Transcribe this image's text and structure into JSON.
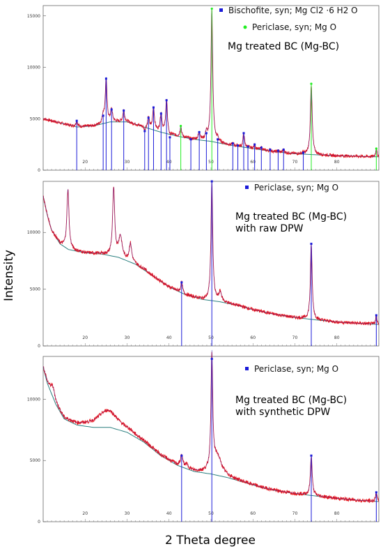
{
  "figure": {
    "ylabel": "Intensity",
    "xlabel": "2 Theta degree"
  },
  "colors": {
    "observed": "#e8141c",
    "background": "#2a7f7f",
    "fit": "#2222bb",
    "bischofite": "#1a1ad8",
    "periclase_top": "#22ee22",
    "periclase": "#1a1ad8",
    "frame": "#666666"
  },
  "chart_data": [
    {
      "type": "line",
      "title": "Mg treated BC (Mg-BC)",
      "xlim": [
        10,
        90
      ],
      "ylim": [
        0,
        16000
      ],
      "yticks": [
        0,
        5000,
        10000,
        15000
      ],
      "ytick_labels": [
        "0",
        "5000",
        "10000",
        "15000"
      ],
      "xticks": [
        20,
        30,
        40,
        50,
        60,
        70,
        80
      ],
      "xtick_labels": [
        "20",
        "30",
        "40",
        "50",
        "60",
        "70",
        "80"
      ],
      "legend": [
        {
          "label": "Bischofite, syn; Mg Cl2 ·6 H2 O",
          "marker": "square",
          "color": "#1a1ad8"
        },
        {
          "label": "Periclase, syn; Mg O",
          "marker": "circle",
          "color": "#22ee22"
        }
      ],
      "background_curve": [
        [
          10,
          5000
        ],
        [
          14,
          4600
        ],
        [
          18,
          4200
        ],
        [
          22,
          4300
        ],
        [
          26,
          4700
        ],
        [
          30,
          4700
        ],
        [
          34,
          4200
        ],
        [
          38,
          3700
        ],
        [
          42,
          3300
        ],
        [
          46,
          3000
        ],
        [
          50,
          2800
        ],
        [
          55,
          2400
        ],
        [
          60,
          2100
        ],
        [
          65,
          1800
        ],
        [
          70,
          1600
        ],
        [
          75,
          1500
        ],
        [
          80,
          1400
        ],
        [
          85,
          1350
        ],
        [
          89.5,
          1300
        ]
      ],
      "peaks": [
        {
          "x": 18.0,
          "h": 4800,
          "w": 0.25,
          "phase": "bischofite"
        },
        {
          "x": 24.3,
          "h": 5300,
          "w": 0.25,
          "phase": "bischofite"
        },
        {
          "x": 25.0,
          "h": 8900,
          "w": 0.25,
          "phase": "bischofite"
        },
        {
          "x": 26.3,
          "h": 5900,
          "w": 0.25,
          "phase": "bischofite"
        },
        {
          "x": 29.2,
          "h": 5800,
          "w": 0.25,
          "phase": "bischofite"
        },
        {
          "x": 34.2,
          "h": 3800,
          "w": 0.2,
          "phase": "bischofite"
        },
        {
          "x": 35.1,
          "h": 5100,
          "w": 0.25,
          "phase": "bischofite"
        },
        {
          "x": 36.3,
          "h": 6100,
          "w": 0.25,
          "phase": "bischofite"
        },
        {
          "x": 38.1,
          "h": 5500,
          "w": 0.25,
          "phase": "bischofite"
        },
        {
          "x": 39.4,
          "h": 6800,
          "w": 0.25,
          "phase": "bischofite"
        },
        {
          "x": 40.2,
          "h": 3200,
          "w": 0.2,
          "phase": "bischofite"
        },
        {
          "x": 42.8,
          "h": 4300,
          "w": 0.2,
          "phase": "periclase"
        },
        {
          "x": 45.2,
          "h": 3000,
          "w": 0.2,
          "phase": "bischofite"
        },
        {
          "x": 47.2,
          "h": 3700,
          "w": 0.25,
          "phase": "bischofite"
        },
        {
          "x": 48.9,
          "h": 3600,
          "w": 0.25,
          "phase": "bischofite"
        },
        {
          "x": 50.2,
          "h": 15700,
          "w": 0.25,
          "phase": "periclase"
        },
        {
          "x": 51.6,
          "h": 3000,
          "w": 0.25,
          "phase": "bischofite"
        },
        {
          "x": 55.2,
          "h": 2600,
          "w": 0.2,
          "phase": "bischofite"
        },
        {
          "x": 56.4,
          "h": 2400,
          "w": 0.2,
          "phase": "bischofite"
        },
        {
          "x": 57.8,
          "h": 3600,
          "w": 0.2,
          "phase": "bischofite"
        },
        {
          "x": 58.8,
          "h": 2300,
          "w": 0.2,
          "phase": "bischofite"
        },
        {
          "x": 60.4,
          "h": 2500,
          "w": 0.2,
          "phase": "bischofite"
        },
        {
          "x": 62.0,
          "h": 2200,
          "w": 0.2,
          "phase": "bischofite"
        },
        {
          "x": 64.1,
          "h": 2000,
          "w": 0.2,
          "phase": "bischofite"
        },
        {
          "x": 66.0,
          "h": 1900,
          "w": 0.2,
          "phase": "bischofite"
        },
        {
          "x": 67.3,
          "h": 2000,
          "w": 0.2,
          "phase": "bischofite"
        },
        {
          "x": 72.0,
          "h": 1700,
          "w": 0.2,
          "phase": "bischofite"
        },
        {
          "x": 73.9,
          "h": 8400,
          "w": 0.25,
          "phase": "periclase"
        },
        {
          "x": 89.4,
          "h": 2100,
          "w": 0.2,
          "phase": "periclase"
        }
      ]
    },
    {
      "type": "line",
      "title": "Mg treated BC (Mg-BC) with raw DPW",
      "title_lines": [
        "Mg treated BC (Mg-BC)",
        "with raw DPW"
      ],
      "xlim": [
        10,
        90
      ],
      "ylim": [
        0,
        14500
      ],
      "yticks": [
        0,
        5000,
        10000
      ],
      "ytick_labels": [
        "0",
        "5000",
        "10000"
      ],
      "xticks": [
        20,
        30,
        40,
        50,
        60,
        70,
        80
      ],
      "xtick_labels": [
        "20",
        "30",
        "40",
        "50",
        "60",
        "70",
        "80"
      ],
      "legend": [
        {
          "label": "Periclase, syn; Mg O",
          "marker": "square",
          "color": "#1a1ad8"
        }
      ],
      "background_curve": [
        [
          10,
          13200
        ],
        [
          11,
          11500
        ],
        [
          12,
          10200
        ],
        [
          14,
          9000
        ],
        [
          16,
          8500
        ],
        [
          20,
          8200
        ],
        [
          24,
          8100
        ],
        [
          28,
          7800
        ],
        [
          32,
          7200
        ],
        [
          36,
          6200
        ],
        [
          40,
          5200
        ],
        [
          44,
          4500
        ],
        [
          48,
          4100
        ],
        [
          52,
          3900
        ],
        [
          56,
          3600
        ],
        [
          60,
          3200
        ],
        [
          65,
          2800
        ],
        [
          70,
          2500
        ],
        [
          75,
          2300
        ],
        [
          80,
          2100
        ],
        [
          85,
          2000
        ],
        [
          89.5,
          1900
        ]
      ],
      "peaks": [
        {
          "x": 15.9,
          "h": 13800,
          "w": 0.3,
          "phase": "other"
        },
        {
          "x": 26.8,
          "h": 13800,
          "w": 0.3,
          "phase": "other"
        },
        {
          "x": 28.4,
          "h": 9600,
          "w": 0.5,
          "phase": "other"
        },
        {
          "x": 30.8,
          "h": 9000,
          "w": 0.35,
          "phase": "other"
        },
        {
          "x": 34.2,
          "h": 6800,
          "w": 0.35,
          "phase": "other"
        },
        {
          "x": 43.0,
          "h": 5600,
          "w": 0.25,
          "phase": "periclase"
        },
        {
          "x": 50.2,
          "h": 14500,
          "w": 0.25,
          "phase": "periclase"
        },
        {
          "x": 52.2,
          "h": 4700,
          "w": 0.4,
          "phase": "other"
        },
        {
          "x": 73.9,
          "h": 9000,
          "w": 0.25,
          "phase": "periclase"
        },
        {
          "x": 89.4,
          "h": 2700,
          "w": 0.2,
          "phase": "periclase"
        }
      ],
      "periclase_marks": [
        43.0,
        50.2,
        73.9,
        89.4
      ]
    },
    {
      "type": "line",
      "title": "Mg treated BC (Mg-BC) with synthetic DPW",
      "title_lines": [
        "Mg treated BC (Mg-BC)",
        "with synthetic DPW"
      ],
      "xlim": [
        10,
        90
      ],
      "ylim": [
        0,
        13500
      ],
      "yticks": [
        0,
        5000,
        10000
      ],
      "ytick_labels": [
        "0",
        "5000",
        "10000"
      ],
      "xticks": [
        20,
        30,
        40,
        50,
        60,
        70,
        80
      ],
      "xtick_labels": [
        "20",
        "30",
        "40",
        "50",
        "60",
        "70",
        "80"
      ],
      "legend": [
        {
          "label": "Periclase, syn; Mg O",
          "marker": "square",
          "color": "#1a1ad8"
        }
      ],
      "background_curve": [
        [
          10,
          12600
        ],
        [
          11,
          11300
        ],
        [
          13,
          9600
        ],
        [
          15,
          8400
        ],
        [
          18,
          7900
        ],
        [
          22,
          7700
        ],
        [
          26,
          7700
        ],
        [
          30,
          7300
        ],
        [
          34,
          6500
        ],
        [
          38,
          5400
        ],
        [
          42,
          4600
        ],
        [
          46,
          4100
        ],
        [
          50,
          3900
        ],
        [
          54,
          3600
        ],
        [
          58,
          3200
        ],
        [
          62,
          2800
        ],
        [
          66,
          2500
        ],
        [
          70,
          2300
        ],
        [
          75,
          2100
        ],
        [
          80,
          1900
        ],
        [
          85,
          1750
        ],
        [
          89.5,
          1650
        ]
      ],
      "peaks": [
        {
          "x": 12.3,
          "h": 11000,
          "w": 0.6,
          "phase": "other"
        },
        {
          "x": 25.4,
          "h": 9100,
          "w": 3.0,
          "phase": "other"
        },
        {
          "x": 30.9,
          "h": 7200,
          "w": 0.6,
          "phase": "other"
        },
        {
          "x": 43.0,
          "h": 5400,
          "w": 0.3,
          "phase": "periclase"
        },
        {
          "x": 44.2,
          "h": 4600,
          "w": 0.4,
          "phase": "other"
        },
        {
          "x": 50.2,
          "h": 13300,
          "w": 0.25,
          "phase": "periclase"
        },
        {
          "x": 51.5,
          "h": 5300,
          "w": 1.2,
          "phase": "other"
        },
        {
          "x": 73.9,
          "h": 5400,
          "w": 0.25,
          "phase": "periclase"
        },
        {
          "x": 89.4,
          "h": 2400,
          "w": 0.2,
          "phase": "periclase"
        }
      ],
      "periclase_marks": [
        43.0,
        50.2,
        73.9,
        89.4
      ]
    }
  ]
}
